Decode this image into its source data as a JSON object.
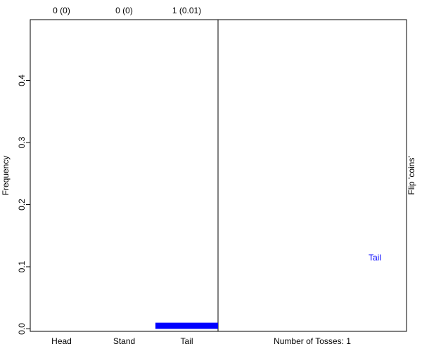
{
  "chart_data": {
    "type": "bar",
    "categories": [
      "Head",
      "Stand",
      "Tail"
    ],
    "values": [
      0,
      0,
      0.01
    ],
    "counts_labels": [
      "0 (0)",
      "0 (0)",
      "1 (0.01)"
    ],
    "ylabel": "Frequency",
    "ylim": [
      0,
      0.5
    ],
    "yticks": [
      0.0,
      0.1,
      0.2,
      0.3,
      0.4
    ],
    "ytick_labels": [
      "0.0",
      "0.1",
      "0.2",
      "0.3",
      "0.4"
    ],
    "bar_color": "#0000ff",
    "grid": false
  },
  "panel": {
    "tosses_label": "Number of Tosses: 1",
    "result_label": "Tail",
    "result_color": "#0000ff",
    "side_title": "Flip 'coins'"
  }
}
